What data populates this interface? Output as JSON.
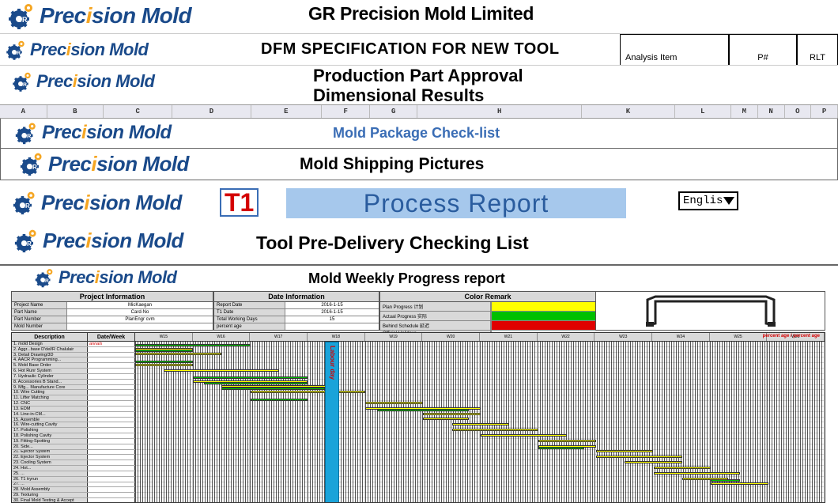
{
  "brand": {
    "name_prefix": "Prec",
    "name_i": "i",
    "name_suffix": "sion Mold",
    "gear_color_main": "#1a4a8a",
    "gear_color_accent": "#f5a623"
  },
  "row1": {
    "title": "GR Precision Mold Limited",
    "title_fontsize": 23
  },
  "row2": {
    "title": "DFM SPECIFICATION FOR NEW TOOL",
    "analysis_label": "Analysis Item",
    "p_label": "P#",
    "rlt_label": "RLT"
  },
  "row3": {
    "title1": "Production Part Approval",
    "title2": "Dimensional Results"
  },
  "colstrip": {
    "cols": [
      "A",
      "B",
      "C",
      "D",
      "E",
      "F",
      "G",
      "H",
      "K",
      "L",
      "M",
      "N",
      "O",
      "P"
    ],
    "widths": [
      60,
      72,
      88,
      100,
      90,
      62,
      60,
      210,
      118,
      72,
      34,
      34,
      34,
      34
    ]
  },
  "row4": {
    "title": "Mold Package Check-list",
    "title_color": "#3a6db5"
  },
  "row5": {
    "title": "Mold Shipping Pictures"
  },
  "row6": {
    "t1": "T1",
    "process_report": "Process Report",
    "pr_bg": "#a6c8ec",
    "pr_color": "#2a5c9e",
    "lang": "Englis"
  },
  "row7": {
    "title": "Tool Pre-Delivery Checking List"
  },
  "row8": {
    "title": "Mold Weekly Progress report",
    "project_info": {
      "header": "Project Information",
      "rows": [
        {
          "k": "Project Name",
          "v": "MicKaegan"
        },
        {
          "k": "Part Name",
          "v": "Card-No"
        },
        {
          "k": "Part Number",
          "v": "PlanEngr cvm"
        },
        {
          "k": "Mold Number",
          "v": ""
        }
      ]
    },
    "date_info": {
      "header": "Date Information",
      "rows": [
        {
          "k": "Report Date",
          "v": "2016-1-15"
        },
        {
          "k": "T1 Date",
          "v": "2016-1-15"
        },
        {
          "k": "Total Working Days",
          "v": "15"
        },
        {
          "k": "percent age",
          "v": ""
        }
      ]
    },
    "color_remark": {
      "header": "Color Remark",
      "rows": [
        {
          "k": "Plan Progress 计划",
          "color": "#ffff00"
        },
        {
          "k": "Actual Progress 实际",
          "color": "#00c000"
        },
        {
          "k": "Behind Schedule 延迟",
          "color": "#e00000"
        },
        {
          "k": "Official Holidays",
          "color": ""
        }
      ]
    },
    "colors": {
      "plan": "#ffff00",
      "actual": "#00c000",
      "behind": "#e00000",
      "holiday": "#1aa3d9",
      "stripe_dark": "#555555",
      "header_grey": "#d9d9d9"
    },
    "week_cols": 12,
    "desc_header": "Description",
    "date_header": "Date/Week",
    "labour_label": "Labour day",
    "period_age_label": "percent age\npercent age",
    "tasks": [
      {
        "name": "1. mold Design",
        "date": "annals"
      },
      {
        "name": "2. Aggr...base D'del/R Chalulair",
        "date": ""
      },
      {
        "name": "3. Detail Drawing/3D",
        "date": ""
      },
      {
        "name": "4. AACR Programming...",
        "date": ""
      },
      {
        "name": "5. Mold Base Order",
        "date": ""
      },
      {
        "name": "6. Hot Runr System",
        "date": ""
      },
      {
        "name": "7. Hydraulic Cylinder",
        "date": ""
      },
      {
        "name": "8. Accessories B Stand...",
        "date": ""
      },
      {
        "name": "9. Mfg... Manufacture Core",
        "date": ""
      },
      {
        "name": "10. Wire Cutting",
        "date": ""
      },
      {
        "name": "11. Lifter Matching",
        "date": ""
      },
      {
        "name": "12. CNC",
        "date": ""
      },
      {
        "name": "13. EDM",
        "date": ""
      },
      {
        "name": "14. Line-in-CM...",
        "date": ""
      },
      {
        "name": "15. Assemble",
        "date": ""
      },
      {
        "name": "16. Wire-cutting Cavity",
        "date": ""
      },
      {
        "name": "17. Polishing",
        "date": ""
      },
      {
        "name": "18. Polishing Cavity",
        "date": ""
      },
      {
        "name": "19. Fitting-Spotting",
        "date": ""
      },
      {
        "name": "20. Side...",
        "date": ""
      },
      {
        "name": "21. Ejector System",
        "date": ""
      },
      {
        "name": "22. Ejector System",
        "date": ""
      },
      {
        "name": "23. Cooling System",
        "date": ""
      },
      {
        "name": "24. Hot...",
        "date": ""
      },
      {
        "name": "25. ...",
        "date": ""
      },
      {
        "name": "26. T1 tryrun",
        "date": ""
      },
      {
        "name": "27. ...",
        "date": ""
      },
      {
        "name": "28. Mold Assembly",
        "date": ""
      },
      {
        "name": "29. Texturing",
        "date": ""
      },
      {
        "name": "30. Final Mold Testing & Accept",
        "date": ""
      }
    ],
    "bars": [
      {
        "task": 0,
        "start": 0,
        "span": 2,
        "kind": "actual"
      },
      {
        "task": 1,
        "start": 0,
        "span": 1,
        "kind": "plan"
      },
      {
        "task": 1,
        "start": 0,
        "span": 1,
        "kind": "actual"
      },
      {
        "task": 2,
        "start": 0,
        "span": 1.5,
        "kind": "plan"
      },
      {
        "task": 3,
        "start": 0,
        "span": 1,
        "kind": "actual"
      },
      {
        "task": 4,
        "start": 0,
        "span": 1,
        "kind": "plan"
      },
      {
        "task": 5,
        "start": 0.5,
        "span": 2,
        "kind": "plan"
      },
      {
        "task": 6,
        "start": 1,
        "span": 2,
        "kind": "actual"
      },
      {
        "task": 7,
        "start": 1,
        "span": 2,
        "kind": "plan"
      },
      {
        "task": 7,
        "start": 1.2,
        "span": 1.8,
        "kind": "actual"
      },
      {
        "task": 8,
        "start": 1.5,
        "span": 2,
        "kind": "plan"
      },
      {
        "task": 8,
        "start": 1.5,
        "span": 1.8,
        "kind": "actual"
      },
      {
        "task": 9,
        "start": 2,
        "span": 2,
        "kind": "plan"
      },
      {
        "task": 10,
        "start": 2,
        "span": 1,
        "kind": "actual"
      },
      {
        "task": 11,
        "start": 4,
        "span": 1,
        "kind": "plan"
      },
      {
        "task": 12,
        "start": 4,
        "span": 2,
        "kind": "plan"
      },
      {
        "task": 12,
        "start": 4.2,
        "span": 1.6,
        "kind": "actual"
      },
      {
        "task": 13,
        "start": 5,
        "span": 1,
        "kind": "plan"
      },
      {
        "task": 14,
        "start": 5,
        "span": 0.8,
        "kind": "plan"
      },
      {
        "task": 15,
        "start": 5.5,
        "span": 1,
        "kind": "plan"
      },
      {
        "task": 16,
        "start": 5.5,
        "span": 1.5,
        "kind": "plan"
      },
      {
        "task": 17,
        "start": 6,
        "span": 1.5,
        "kind": "plan"
      },
      {
        "task": 18,
        "start": 7,
        "span": 1,
        "kind": "plan"
      },
      {
        "task": 19,
        "start": 7,
        "span": 1,
        "kind": "plan"
      },
      {
        "task": 19,
        "start": 7,
        "span": 0.8,
        "kind": "actual"
      },
      {
        "task": 20,
        "start": 8,
        "span": 1,
        "kind": "plan"
      },
      {
        "task": 21,
        "start": 8,
        "span": 1.5,
        "kind": "plan"
      },
      {
        "task": 22,
        "start": 8.5,
        "span": 1,
        "kind": "plan"
      },
      {
        "task": 23,
        "start": 9,
        "span": 1,
        "kind": "plan"
      },
      {
        "task": 24,
        "start": 9,
        "span": 1.5,
        "kind": "plan"
      },
      {
        "task": 25,
        "start": 9.5,
        "span": 0.8,
        "kind": "plan"
      },
      {
        "task": 25,
        "start": 10,
        "span": 0.5,
        "kind": "actual"
      },
      {
        "task": 26,
        "start": 10,
        "span": 1,
        "kind": "plan"
      }
    ],
    "labour_col": 3
  }
}
